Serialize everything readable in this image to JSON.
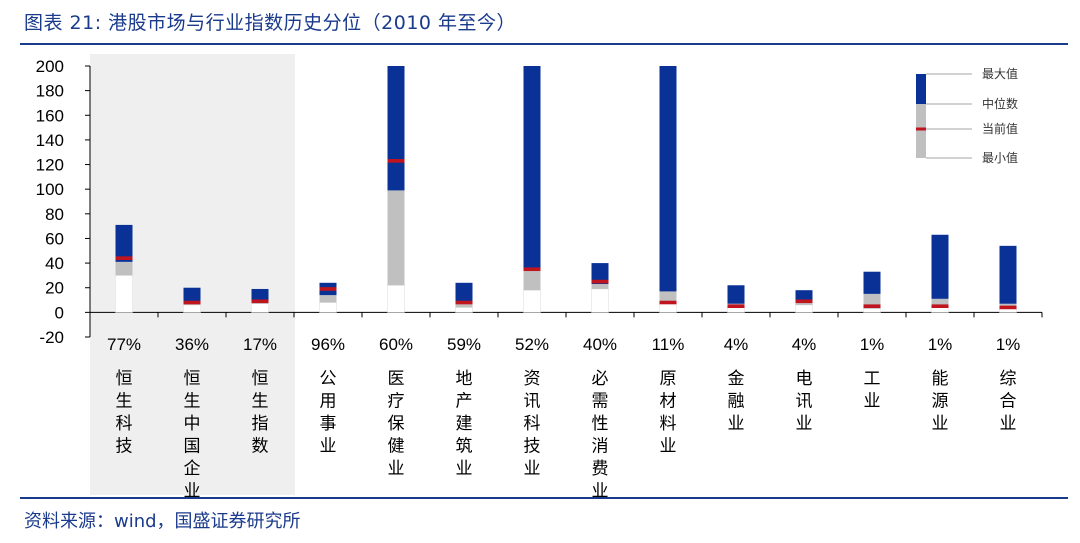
{
  "title": "图表 21:  港股市场与行业指数历史分位（2010 年至今）",
  "source": "资料来源：wind，国盛证券研究所",
  "colors": {
    "upper": "#0a3296",
    "lower": "#c0c0c0",
    "current": "#c0141e",
    "highlight_bg": "#efefef",
    "rule": "#1a3a8c"
  },
  "chart_data": {
    "type": "bar",
    "subtype": "floating-stacked-range",
    "ylim": [
      -20,
      200
    ],
    "yticks": [
      "200",
      "180",
      "160",
      "140",
      "120",
      "100",
      "80",
      "60",
      "40",
      "20",
      "0",
      "-20"
    ],
    "yticks_values": [
      200,
      180,
      160,
      140,
      120,
      100,
      80,
      60,
      40,
      20,
      0,
      -20
    ],
    "highlight_first_n": 3,
    "legend": {
      "position": "top-right",
      "items": [
        "最大值",
        "中位数",
        "当前值",
        "最小值"
      ]
    },
    "categories": [
      "恒生科技",
      "恒生中国企业",
      "恒生指数",
      "公用事业",
      "医疗保健业",
      "地产建筑业",
      "资讯科技业",
      "必需性消费业",
      "原材料业",
      "金融业",
      "电讯业",
      "工业",
      "能源业",
      "综合业"
    ],
    "percentiles": [
      "77%",
      "36%",
      "17%",
      "96%",
      "60%",
      "59%",
      "52%",
      "40%",
      "11%",
      "4%",
      "4%",
      "1%",
      "1%",
      "1%"
    ],
    "min": [
      30,
      6,
      7,
      8,
      22,
      4,
      18,
      19,
      7,
      4,
      6,
      3,
      4,
      3
    ],
    "median": [
      41,
      9,
      10,
      14,
      99,
      7,
      34,
      23,
      17,
      7,
      10,
      15,
      11,
      7
    ],
    "max": [
      71,
      20,
      19,
      24,
      200,
      24,
      200,
      40,
      200,
      22,
      18,
      33,
      63,
      54
    ],
    "current": [
      44,
      8,
      9,
      19,
      123,
      8,
      35,
      25,
      8,
      5,
      9,
      5,
      5,
      4
    ]
  }
}
